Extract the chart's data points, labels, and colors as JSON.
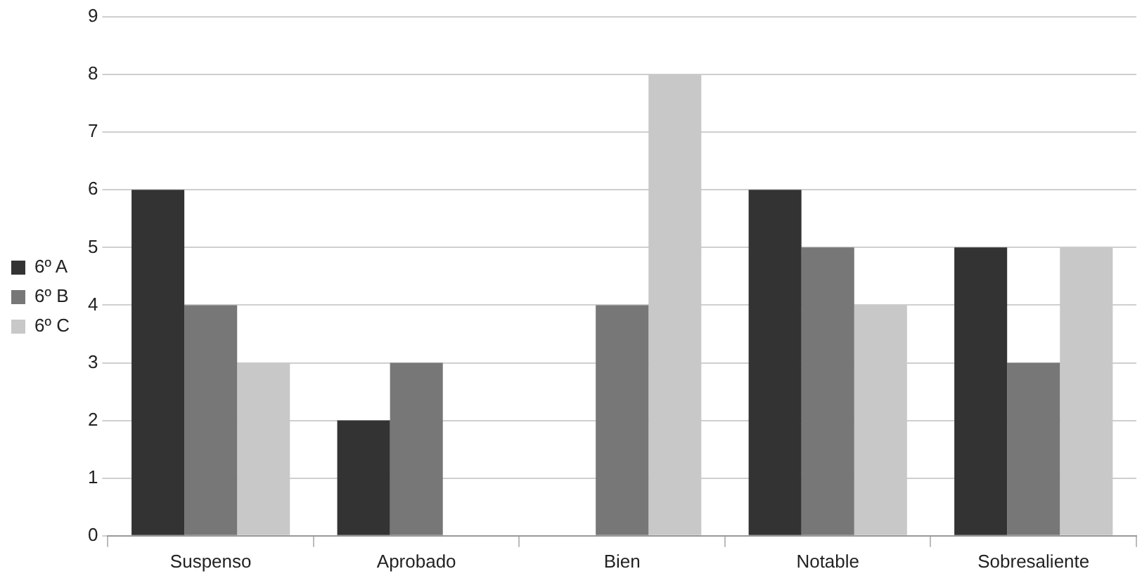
{
  "chart_data": {
    "type": "bar",
    "categories": [
      "Suspenso",
      "Aprobado",
      "Bien",
      "Notable",
      "Sobresaliente"
    ],
    "series": [
      {
        "name": "6º A",
        "color": "#333333",
        "values": [
          6,
          2,
          0,
          6,
          5
        ]
      },
      {
        "name": "6º B",
        "color": "#777777",
        "values": [
          4,
          3,
          4,
          5,
          3
        ]
      },
      {
        "name": "6º C",
        "color": "#c8c8c8",
        "values": [
          3,
          0,
          8,
          4,
          5
        ]
      }
    ],
    "ylim": [
      0,
      9
    ],
    "yticks": [
      0,
      1,
      2,
      3,
      4,
      5,
      6,
      7,
      8,
      9
    ],
    "grid": "y",
    "legend": "left"
  }
}
